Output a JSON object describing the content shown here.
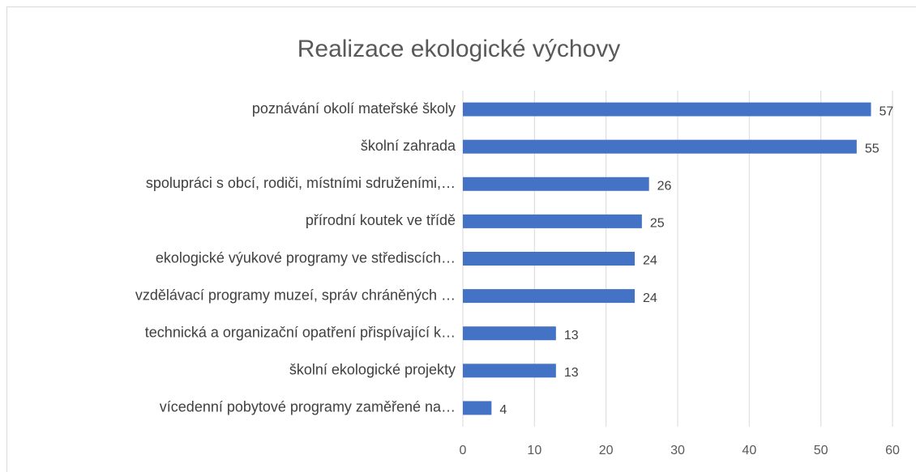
{
  "chart_data": {
    "type": "bar",
    "orientation": "horizontal",
    "title": "Realizace ekologické výchovy",
    "categories": [
      "poznávání okolí mateřské školy",
      "školní zahrada",
      "spolupráci s obcí, rodiči, místními sdruženími,…",
      "přírodní koutek ve třídě",
      "ekologické výukové programy ve střediscích…",
      "vzdělávací programy muzeí, správ chráněných …",
      "technická a organizační opatření přispívající k…",
      "školní ekologické projekty",
      "vícedenní pobytové programy zaměřené na…"
    ],
    "values": [
      57,
      55,
      26,
      25,
      24,
      24,
      13,
      13,
      4
    ],
    "color": "#4472c4",
    "xlim": [
      0,
      60
    ],
    "xticks": [
      0,
      10,
      20,
      30,
      40,
      50,
      60
    ],
    "grid": true
  }
}
